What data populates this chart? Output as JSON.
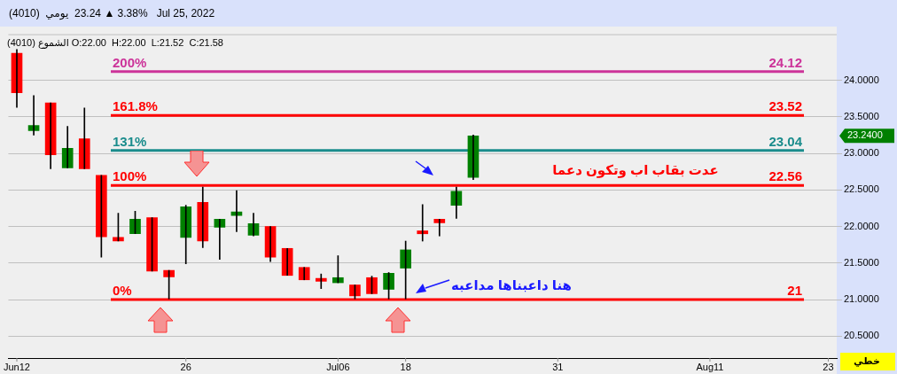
{
  "chart_data": {
    "type": "candlestick",
    "title": "(4010)  يومي  23.24 ▲ 3.38%   Jul 25, 2022",
    "subtitle": "الشموع (4010) O:22.00  H:22.00  L:21.52  C:21.58",
    "categories": [
      "Jun12",
      null,
      null,
      null,
      null,
      null,
      null,
      null,
      null,
      null,
      "26",
      null,
      null,
      null,
      null,
      null,
      null,
      null,
      null,
      "Jul06",
      null,
      null,
      null,
      "18",
      null,
      null,
      null,
      null,
      null,
      null,
      null,
      null,
      "31",
      null,
      null,
      null,
      null,
      null,
      null,
      null,
      null,
      "Aug11",
      null,
      null,
      null,
      null,
      null,
      null,
      "23"
    ],
    "ohlc": [
      [
        24.37,
        24.42,
        23.63,
        23.83
      ],
      [
        23.31,
        23.79,
        23.25,
        23.38
      ],
      [
        23.69,
        23.69,
        22.79,
        22.98
      ],
      [
        22.8,
        23.37,
        22.8,
        23.07
      ],
      [
        23.2,
        23.62,
        22.79,
        22.79
      ],
      [
        22.7,
        22.7,
        21.58,
        21.86
      ],
      [
        21.85,
        22.18,
        21.8,
        21.8
      ],
      [
        21.9,
        22.21,
        21.9,
        22.1
      ],
      [
        22.12,
        22.12,
        21.39,
        21.39
      ],
      [
        21.4,
        21.4,
        21.01,
        21.31
      ],
      [
        21.85,
        22.29,
        21.49,
        22.27
      ],
      [
        22.33,
        22.54,
        21.71,
        21.8
      ],
      [
        21.99,
        22.1,
        21.55,
        22.1
      ],
      [
        22.15,
        22.49,
        21.93,
        22.2
      ],
      [
        21.88,
        22.18,
        21.87,
        22.04
      ],
      [
        22.0,
        22.0,
        21.52,
        21.58
      ],
      [
        21.7,
        21.7,
        21.33,
        21.33
      ],
      [
        21.44,
        21.44,
        21.27,
        21.27
      ],
      [
        21.29,
        21.35,
        21.15,
        21.25
      ],
      [
        21.23,
        21.6,
        21.23,
        21.3
      ],
      [
        21.2,
        21.2,
        21.01,
        21.05
      ],
      [
        21.3,
        21.32,
        21.08,
        21.08
      ],
      [
        21.14,
        21.37,
        21.01,
        21.36
      ],
      [
        21.43,
        21.8,
        21.01,
        21.68
      ],
      [
        21.94,
        22.3,
        21.8,
        21.9
      ],
      [
        22.1,
        22.1,
        21.87,
        22.05
      ],
      [
        22.29,
        22.54,
        22.11,
        22.48
      ],
      [
        22.67,
        23.25,
        22.64,
        23.24
      ],
      null,
      null,
      null,
      null,
      null,
      null,
      null,
      null,
      null,
      null,
      null,
      null,
      null,
      null,
      null,
      null,
      null,
      null,
      null,
      null,
      null
    ],
    "colors": [
      "#ff0000",
      "#008000",
      "#ff0000",
      "#008000",
      "#ff0000",
      "#ff0000",
      "#ff0000",
      "#008000",
      "#ff0000",
      "#ff0000",
      "#008000",
      "#ff0000",
      "#008000",
      "#008000",
      "#008000",
      "#ff0000",
      "#ff0000",
      "#ff0000",
      "#ff0000",
      "#008000",
      "#ff0000",
      "#ff0000",
      "#008000",
      "#008000",
      "#ff0000",
      "#ff0000",
      "#008000",
      "#008000",
      null,
      null,
      null,
      null,
      null,
      null,
      null,
      null,
      null,
      null,
      null,
      null,
      null,
      null,
      null,
      null,
      null,
      null,
      null,
      null,
      null
    ],
    "ylim": [
      20.2,
      24.63
    ],
    "yticks": [
      {
        "value": 20.5,
        "label": "20.5000"
      },
      {
        "value": 21,
        "label": "21.0000"
      },
      {
        "value": 21.5,
        "label": "21.5000"
      },
      {
        "value": 22,
        "label": "22.0000"
      },
      {
        "value": 22.5,
        "label": "22.5000"
      },
      {
        "value": 23,
        "label": "23.0000"
      },
      {
        "value": 23.5,
        "label": "23.5000"
      },
      {
        "value": 24,
        "label": "24.0000"
      }
    ],
    "grid": "y",
    "ref_lines": [
      {
        "axis": "y",
        "value": 24.12,
        "label": "24.12",
        "color": "#cc3399"
      },
      {
        "axis": "y",
        "value": 23.52,
        "label": "23.52",
        "color": "#ff0000"
      },
      {
        "axis": "y",
        "value": 23.04,
        "label": "23.04",
        "color": "#1a8c8c"
      },
      {
        "axis": "y",
        "value": 22.56,
        "label": "22.56",
        "color": "#ff0000"
      },
      {
        "axis": "y",
        "value": 21,
        "label": "21",
        "color": "#ff0000"
      }
    ],
    "annotations": [
      "هنا داعبناها مداعبه",
      "عدت بقاب اب وتكون دعما",
      "23.2400",
      "خطي",
      {
        "text": "200%",
        "y": 24.12
      },
      {
        "text": "161.8%",
        "y": 23.52
      },
      {
        "text": "131%",
        "y": 23.04
      },
      {
        "text": "100%",
        "y": 22.56
      },
      {
        "text": "0%",
        "y": 21
      }
    ]
  }
}
